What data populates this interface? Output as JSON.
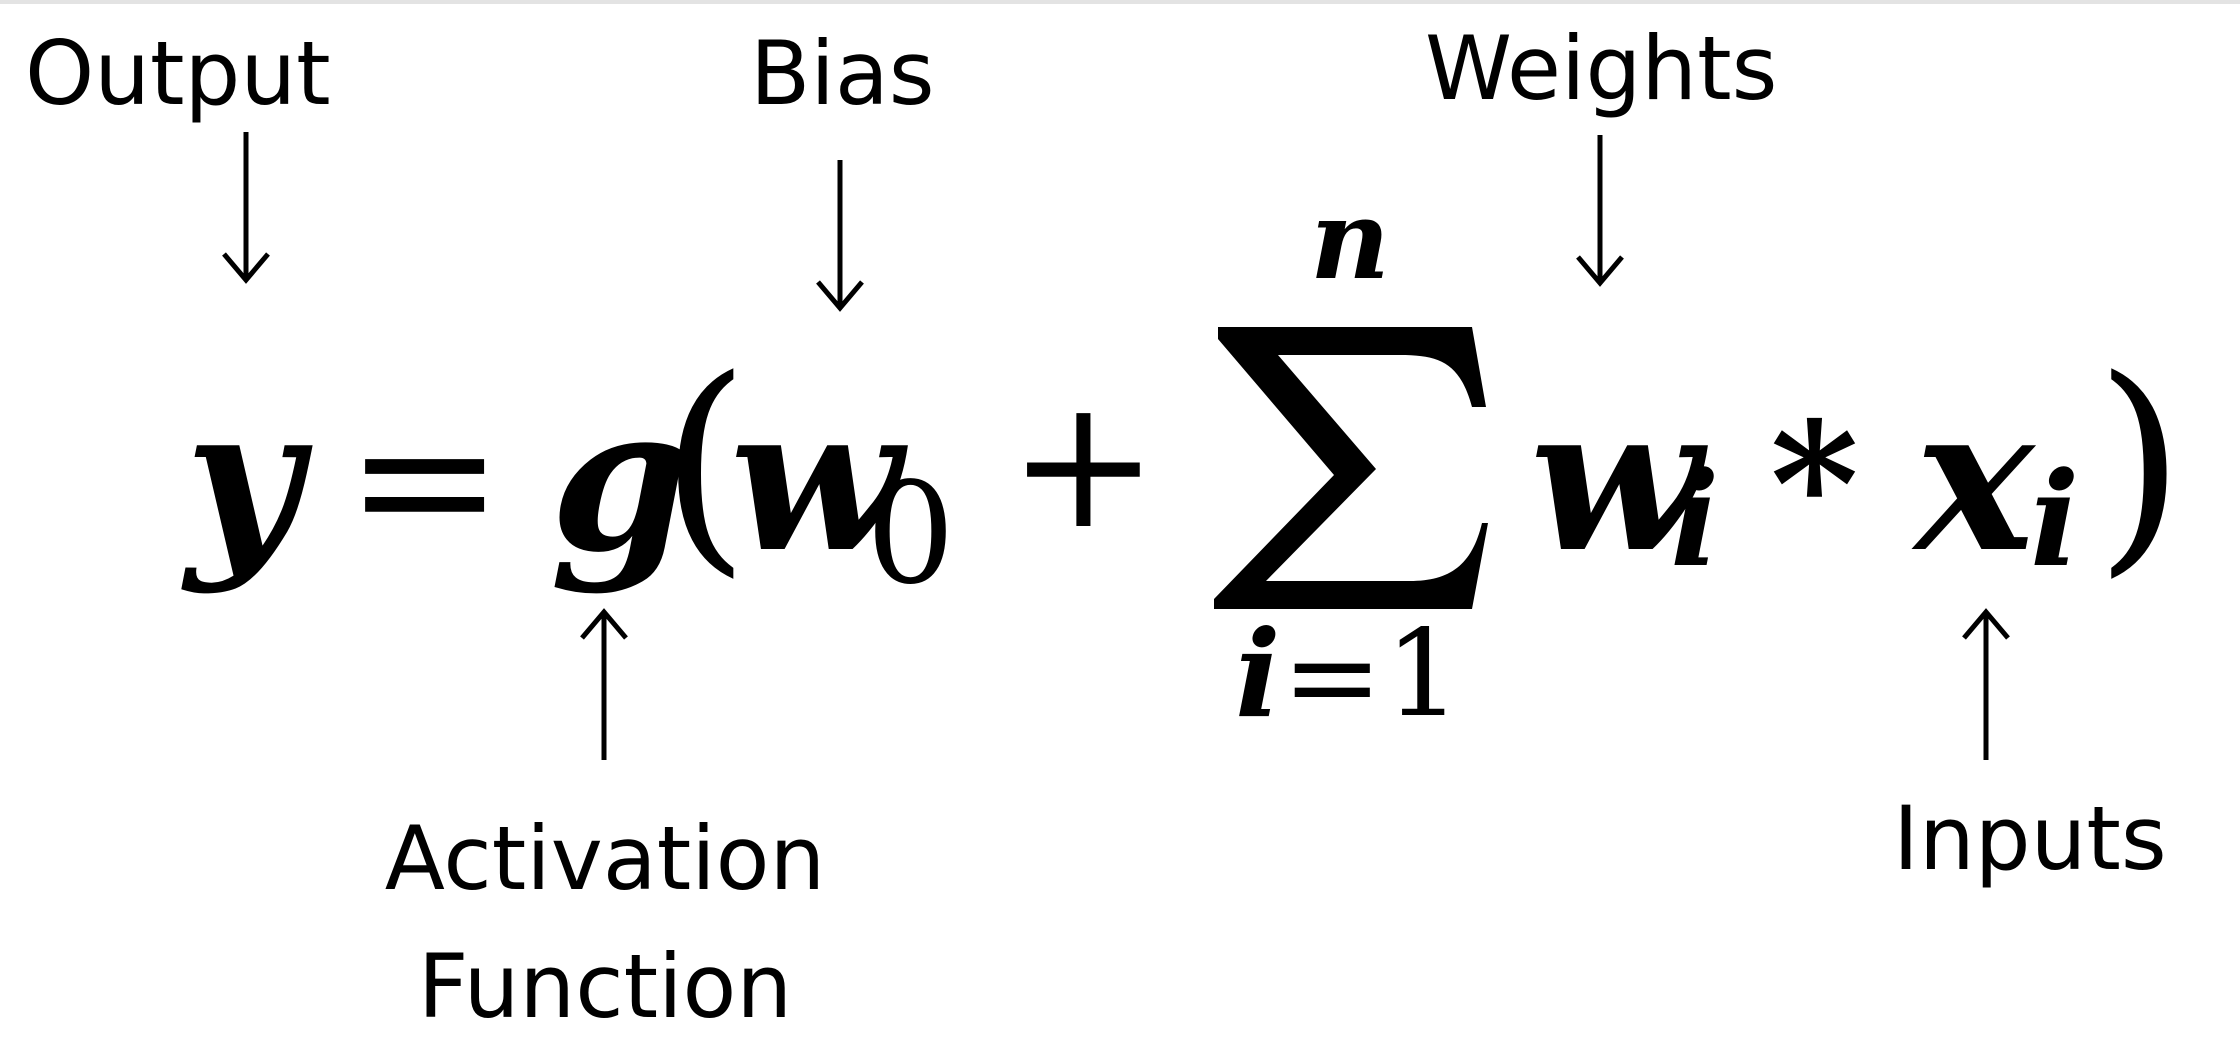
{
  "labels": {
    "output": "Output",
    "bias": "Bias",
    "weights": "Weights",
    "activation_line1": "Activation",
    "activation_line2": "Function",
    "inputs": "Inputs"
  },
  "equation": {
    "output_var": "y",
    "equals": "=",
    "activation_fn": "g",
    "open_paren": "(",
    "bias_var": "w",
    "bias_sub": "0",
    "plus": "+",
    "sum_upper": "n",
    "sum_lower_var": "i",
    "sum_lower_eq": "=",
    "sum_lower_val": "1",
    "weight_var": "w",
    "weight_sub": "i",
    "times": "*",
    "input_var": "x",
    "input_sub": "i",
    "close_paren": ")"
  },
  "colors": {
    "ink": "#000000",
    "background": "#ffffff",
    "top_rule": "#e3e3e3"
  }
}
